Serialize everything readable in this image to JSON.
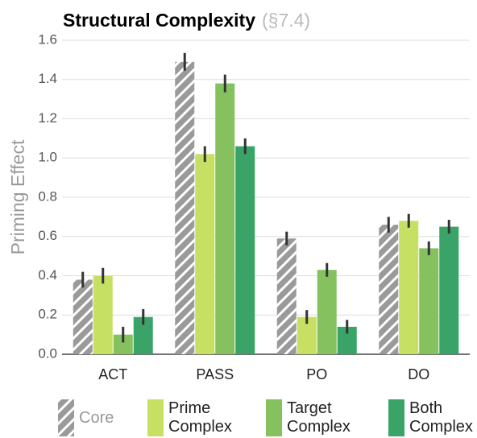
{
  "chart_data": {
    "type": "bar",
    "title": "Structural Complexity",
    "subtitle": "(§7.4)",
    "y_label": "Priming Effect",
    "categories": [
      "ACT",
      "PASS",
      "PO",
      "DO"
    ],
    "series": [
      {
        "name": "Core",
        "color": "#9a9a9a",
        "pattern": "hatch",
        "values": [
          0.38,
          1.49,
          0.59,
          0.66
        ],
        "errors": [
          0.04,
          0.045,
          0.035,
          0.04
        ]
      },
      {
        "name": "Prime Complex",
        "color": "#c5e063",
        "values": [
          0.4,
          1.02,
          0.19,
          0.68
        ],
        "errors": [
          0.04,
          0.04,
          0.035,
          0.035
        ]
      },
      {
        "name": "Target Complex",
        "color": "#86c160",
        "values": [
          0.1,
          1.38,
          0.43,
          0.54
        ],
        "errors": [
          0.04,
          0.045,
          0.035,
          0.035
        ]
      },
      {
        "name": "Both Complex",
        "color": "#3aa468",
        "values": [
          0.19,
          1.06,
          0.14,
          0.65
        ],
        "errors": [
          0.04,
          0.04,
          0.035,
          0.035
        ]
      }
    ],
    "ylim": [
      0,
      1.6
    ],
    "yticks": [
      {
        "value": 0,
        "label": "0.0"
      },
      0.2,
      0.4,
      0.6,
      0.8,
      {
        "value": 1,
        "label": "1.0"
      },
      1.2,
      1.4,
      1.6
    ],
    "grid": true
  }
}
